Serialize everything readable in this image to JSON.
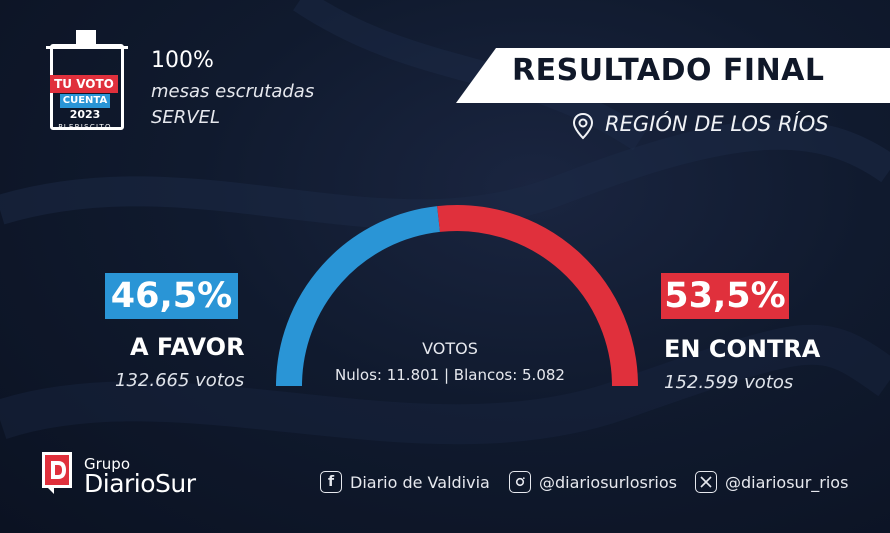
{
  "logo": {
    "line1": "TU VOTO",
    "line2": "CUENTA",
    "year": "2023",
    "caption": "PLEBISCITO"
  },
  "count": {
    "percent": "100%",
    "description": "mesas escrutadas",
    "source": "SERVEL"
  },
  "header": {
    "title": "RESULTADO FINAL",
    "region": "REGIÓN DE LOS RÍOS",
    "region_icon": "location-pin-icon"
  },
  "results": {
    "favor": {
      "percent": "46,5%",
      "label": "A FAVOR",
      "votes": "132.665 votos",
      "share": 46.5,
      "color": "#2a95d6"
    },
    "contra": {
      "percent": "53,5%",
      "label": "EN CONTRA",
      "votes": "152.599 votos",
      "share": 53.5,
      "color": "#e0303c"
    },
    "votos_title": "VOTOS",
    "votos_detail": "Nulos: 11.801  | Blancos: 5.082"
  },
  "footer": {
    "brand_small": "Grupo",
    "brand_name": "DiarioSur",
    "social": [
      {
        "icon": "facebook-icon",
        "text": "Diario de Valdivia"
      },
      {
        "icon": "instagram-icon",
        "text": "@diariosurlosrios"
      },
      {
        "icon": "x-icon",
        "text": "@diariosur_rios"
      }
    ]
  }
}
